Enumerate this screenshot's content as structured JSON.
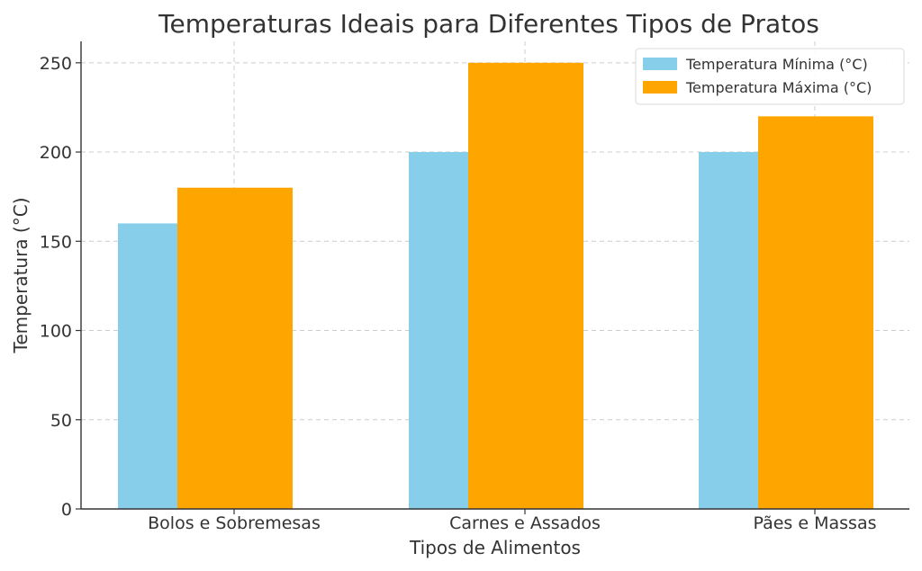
{
  "chart_data": {
    "type": "bar",
    "title": "Temperaturas Ideais para Diferentes Tipos de Pratos",
    "xlabel": "Tipos de Alimentos",
    "ylabel": "Temperatura (°C)",
    "categories": [
      "Bolos e Sobremesas",
      "Carnes e Assados",
      "Pães e Massas"
    ],
    "series": [
      {
        "name": "Temperatura Mínima (°C)",
        "values": [
          160,
          200,
          200
        ],
        "color": "#87ceeb"
      },
      {
        "name": "Temperatura Máxima (°C)",
        "values": [
          180,
          250,
          220
        ],
        "color": "#ffa500"
      }
    ],
    "ylim": [
      0,
      262
    ],
    "yticks": [
      0,
      50,
      100,
      150,
      200,
      250
    ],
    "grid": true,
    "legend_position": "top-right"
  }
}
